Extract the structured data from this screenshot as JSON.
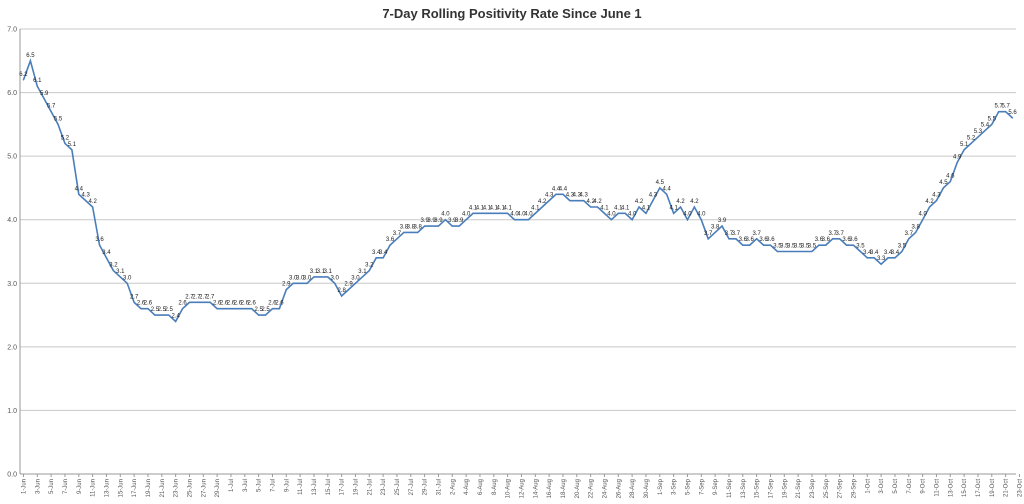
{
  "chart_data": {
    "type": "line",
    "title": "7-Day Rolling Positivity Rate Since June 1",
    "xlabel": "",
    "ylabel": "",
    "ylim": [
      0,
      7
    ],
    "yticks": [
      "0.0",
      "1.0",
      "2.0",
      "3.0",
      "4.0",
      "5.0",
      "6.0",
      "7.0"
    ],
    "grid": true,
    "legend": "none",
    "line_color": "#4a7ebb",
    "x_tick_labels": [
      "1-Jun",
      "3-Jun",
      "5-Jun",
      "7-Jun",
      "9-Jun",
      "11-Jun",
      "13-Jun",
      "15-Jun",
      "17-Jun",
      "19-Jun",
      "21-Jun",
      "23-Jun",
      "25-Jun",
      "27-Jun",
      "29-Jun",
      "1-Jul",
      "3-Jul",
      "5-Jul",
      "7-Jul",
      "9-Jul",
      "11-Jul",
      "13-Jul",
      "15-Jul",
      "17-Jul",
      "19-Jul",
      "21-Jul",
      "23-Jul",
      "25-Jul",
      "27-Jul",
      "29-Jul",
      "31-Jul",
      "2-Aug",
      "4-Aug",
      "6-Aug",
      "8-Aug",
      "10-Aug",
      "12-Aug",
      "14-Aug",
      "16-Aug",
      "18-Aug",
      "20-Aug",
      "22-Aug",
      "24-Aug",
      "26-Aug",
      "28-Aug",
      "30-Aug",
      "1-Sep",
      "3-Sep",
      "5-Sep",
      "7-Sep",
      "9-Sep",
      "11-Sep",
      "13-Sep",
      "15-Sep",
      "17-Sep",
      "19-Sep",
      "21-Sep",
      "23-Sep",
      "25-Sep",
      "27-Sep",
      "29-Sep",
      "1-Oct",
      "3-Oct",
      "5-Oct",
      "7-Oct",
      "9-Oct",
      "11-Oct",
      "13-Oct",
      "15-Oct",
      "17-Oct",
      "19-Oct",
      "21-Oct",
      "23-Oct"
    ],
    "series": [
      {
        "values": [
          6.2,
          6.5,
          6.1,
          5.9,
          5.7,
          5.5,
          5.2,
          5.1,
          4.4,
          4.3,
          4.2,
          3.6,
          3.4,
          3.2,
          3.1,
          3.0,
          2.7,
          2.6,
          2.6,
          2.5,
          2.5,
          2.5,
          2.4,
          2.6,
          2.7,
          2.7,
          2.7,
          2.7,
          2.6,
          2.6,
          2.6,
          2.6,
          2.6,
          2.6,
          2.5,
          2.5,
          2.6,
          2.6,
          2.9,
          3.0,
          3.0,
          3.0,
          3.1,
          3.1,
          3.1,
          3.0,
          2.8,
          2.9,
          3.0,
          3.1,
          3.2,
          3.4,
          3.4,
          3.6,
          3.7,
          3.8,
          3.8,
          3.8,
          3.9,
          3.9,
          3.9,
          4.0,
          3.9,
          3.9,
          4.0,
          4.1,
          4.1,
          4.1,
          4.1,
          4.1,
          4.1,
          4.0,
          4.0,
          4.0,
          4.1,
          4.2,
          4.3,
          4.4,
          4.4,
          4.3,
          4.3,
          4.3,
          4.2,
          4.2,
          4.1,
          4.0,
          4.1,
          4.1,
          4.0,
          4.2,
          4.1,
          4.3,
          4.5,
          4.4,
          4.1,
          4.2,
          4.0,
          4.2,
          4.0,
          3.7,
          3.8,
          3.9,
          3.7,
          3.7,
          3.6,
          3.6,
          3.7,
          3.6,
          3.6,
          3.5,
          3.5,
          3.5,
          3.5,
          3.5,
          3.5,
          3.6,
          3.6,
          3.7,
          3.7,
          3.6,
          3.6,
          3.5,
          3.4,
          3.4,
          3.3,
          3.4,
          3.4,
          3.5,
          3.7,
          3.8,
          4.0,
          4.2,
          4.3,
          4.5,
          4.6,
          4.9,
          5.1,
          5.2,
          5.3,
          5.4,
          5.5,
          5.7,
          5.7,
          5.6
        ]
      }
    ]
  }
}
